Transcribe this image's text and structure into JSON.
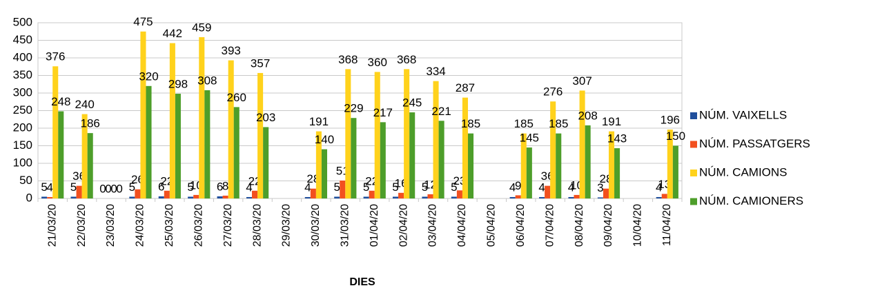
{
  "chart_data": {
    "type": "bar",
    "x_label": "DIES",
    "categories": [
      "21/03/20",
      "22/03/20",
      "23/03/20",
      "24/03/20",
      "25/03/20",
      "26/03/20",
      "27/03/20",
      "28/03/20",
      "29/03/20",
      "30/03/20",
      "31/03/20",
      "01/04/20",
      "02/04/20",
      "03/04/20",
      "04/04/20",
      "05/04/20",
      "06/04/20",
      "07/04/20",
      "08/04/20",
      "09/04/20",
      "10/04/20",
      "11/04/20"
    ],
    "series": [
      {
        "name": "NÚM. VAIXELLS",
        "color": "#1f4e9c",
        "values": [
          5,
          5,
          0,
          5,
          6,
          5,
          6,
          4,
          null,
          4,
          5,
          5,
          5,
          5,
          5,
          null,
          4,
          4,
          4,
          3,
          null,
          4
        ]
      },
      {
        "name": "NÚM. PASSATGERS",
        "color": "#f2501f",
        "values": [
          4,
          36,
          0,
          26,
          22,
          10,
          8,
          22,
          null,
          28,
          51,
          22,
          16,
          12,
          23,
          null,
          9,
          36,
          10,
          28,
          null,
          13
        ]
      },
      {
        "name": "NÚM. CAMIONS",
        "color": "#ffd21c",
        "values": [
          376,
          240,
          0,
          475,
          442,
          459,
          393,
          357,
          null,
          191,
          368,
          360,
          368,
          334,
          287,
          null,
          185,
          276,
          307,
          191,
          null,
          196
        ]
      },
      {
        "name": "NÚM. CAMIONERS",
        "color": "#4d9e2a",
        "values": [
          248,
          186,
          0,
          320,
          298,
          308,
          260,
          203,
          null,
          140,
          229,
          217,
          245,
          221,
          185,
          null,
          145,
          185,
          208,
          143,
          null,
          150
        ]
      }
    ],
    "ylim": [
      0,
      500
    ],
    "yticks": [
      0,
      50,
      100,
      150,
      200,
      250,
      300,
      350,
      400,
      450,
      500
    ],
    "grid": true,
    "legend": "right"
  }
}
